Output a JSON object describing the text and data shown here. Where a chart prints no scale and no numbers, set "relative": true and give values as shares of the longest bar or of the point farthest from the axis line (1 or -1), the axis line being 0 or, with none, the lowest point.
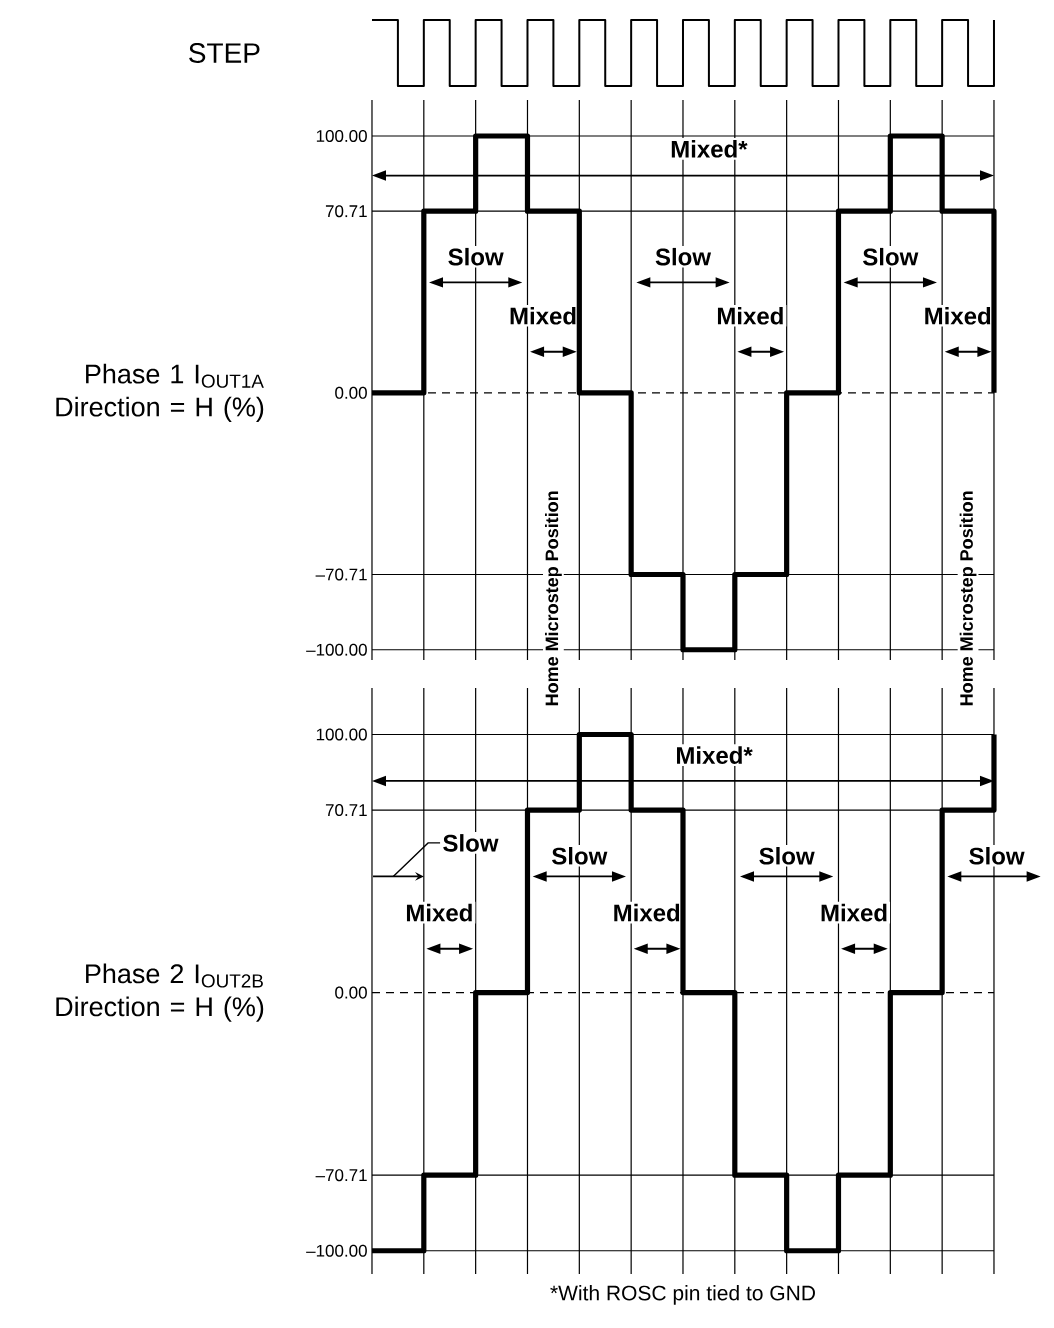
{
  "chart_data": [
    {
      "type": "step",
      "relative": true,
      "ylabel": "STEP",
      "color": "#000000",
      "categories": [
        null,
        null,
        null,
        null,
        null,
        null,
        null,
        null,
        null,
        null,
        null,
        null,
        null,
        null,
        null,
        null,
        null,
        null,
        null,
        null,
        null,
        null,
        null,
        null,
        null
      ],
      "values": [
        1,
        0,
        1,
        0,
        1,
        0,
        1,
        0,
        1,
        0,
        1,
        0,
        1,
        0,
        1,
        0,
        1,
        0,
        1,
        0,
        1,
        0,
        1,
        0,
        1
      ]
    },
    {
      "type": "step",
      "ylabel": "Phase 1 I$_{OUT1A}$ Direction = H (%)",
      "color": "#000000",
      "grid": true,
      "tick_labels": "y",
      "ylim": [
        -104,
        114
      ],
      "yticks": [
        {
          "value": -100,
          "label": "–100.00"
        },
        {
          "value": -70.71,
          "label": "–70.71"
        },
        {
          "value": 0,
          "label": "0.00"
        },
        {
          "value": 70.71,
          "label": "70.71"
        },
        {
          "value": 100,
          "label": "100.00"
        }
      ],
      "categories": [
        null,
        null,
        null,
        null,
        null,
        null,
        null,
        null,
        null,
        null,
        null,
        null,
        null
      ],
      "values": [
        0,
        70.71,
        100,
        70.71,
        0,
        -70.71,
        -100,
        -70.71,
        0,
        70.71,
        100,
        70.71,
        0
      ],
      "ref_lines": [
        {
          "axis": "y",
          "value": 0,
          "line_style": "dashed"
        }
      ],
      "annotations": [
        "Mixed*",
        "Slow",
        "Mixed",
        "Slow",
        "Mixed",
        "Slow",
        "Mixed",
        "Home Microstep Position",
        "Home Microstep Position"
      ]
    },
    {
      "type": "step",
      "ylabel": "Phase 2 I$_{OUT2B}$ Direction = H (%)",
      "color": "#000000",
      "grid": true,
      "tick_labels": "y",
      "ylim": [
        -109,
        118
      ],
      "yticks": [
        {
          "value": -100,
          "label": "–100.00"
        },
        {
          "value": -70.71,
          "label": "–70.71"
        },
        {
          "value": 0,
          "label": "0.00"
        },
        {
          "value": 70.71,
          "label": "70.71"
        },
        {
          "value": 100,
          "label": "100.00"
        }
      ],
      "categories": [
        null,
        null,
        null,
        null,
        null,
        null,
        null,
        null,
        null,
        null,
        null,
        null,
        null
      ],
      "values": [
        -100,
        -70.71,
        0,
        70.71,
        100,
        70.71,
        0,
        -70.71,
        -100,
        -70.71,
        0,
        70.71,
        100
      ],
      "ref_lines": [
        {
          "axis": "y",
          "value": 0,
          "line_style": "dashed"
        }
      ],
      "annotations": [
        "Mixed*",
        "Slow",
        "Mixed",
        "Slow",
        "Mixed",
        "Slow",
        "Mixed",
        "Slow",
        "*With ROSC pin tied to GND"
      ]
    }
  ]
}
